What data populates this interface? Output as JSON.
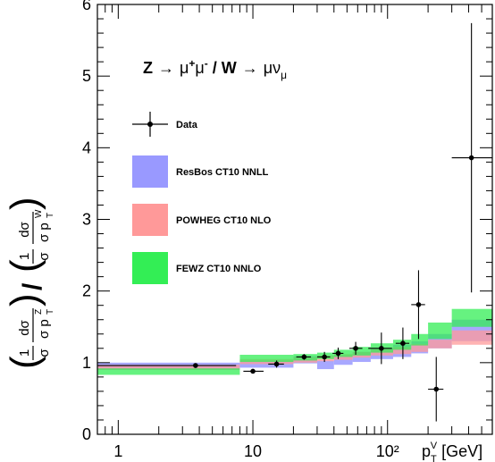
{
  "chart_data": {
    "type": "scatter",
    "title": "Z → μ⁺μ⁻ / W → μν_μ",
    "title_parts": {
      "z": "Z",
      "arrow1": "→",
      "mu": "μ",
      "plus": "+",
      "mu2": "μ",
      "minus": "-",
      "slash": " / W",
      "arrow2": "→",
      "munu": "μν",
      "sub": "μ"
    },
    "xlabel": "p_T^V [GeV]",
    "xlabel_parts": {
      "p": "p",
      "sub": "T",
      "sup": "V",
      "unit": " [GeV]"
    },
    "ylabel": "(1/σ dσ/dp_T^Z) / (1/σ dσ/dp_T^W)",
    "ylabel_parts": {
      "one": "1",
      "sigma": "σ",
      "dsigma": "dσ",
      "p": "p",
      "sub": "T",
      "supZ": "Z",
      "supW": "W"
    },
    "x_scale": "log",
    "xlim": [
      0.7,
      600
    ],
    "ylim": [
      0,
      6
    ],
    "x_tick_labels": [
      "1",
      "10",
      "10²"
    ],
    "x_tick_values": [
      1,
      10,
      100
    ],
    "y_tick_labels": [
      "0",
      "1",
      "2",
      "3",
      "4",
      "5",
      "6"
    ],
    "y_tick_values": [
      0,
      1,
      2,
      3,
      4,
      5,
      6
    ],
    "grid": false,
    "legend_position": "left",
    "series": [
      {
        "name": "Data",
        "color": "#000000",
        "points": [
          {
            "x": 3.75,
            "y": 0.96,
            "xlo": 0.7,
            "xhi": 7.5,
            "yerr": 0.02
          },
          {
            "x": 10,
            "y": 0.88,
            "xlo": 8.5,
            "xhi": 12,
            "yerr": 0.03
          },
          {
            "x": 15,
            "y": 0.98,
            "xlo": 13,
            "xhi": 17,
            "yerr": 0.05
          },
          {
            "x": 24,
            "y": 1.08,
            "xlo": 21,
            "xhi": 27,
            "yerr": 0.04
          },
          {
            "x": 34,
            "y": 1.08,
            "xlo": 30,
            "xhi": 37.5,
            "yerr": 0.07
          },
          {
            "x": 43,
            "y": 1.13,
            "xlo": 39,
            "xhi": 47,
            "yerr": 0.08
          },
          {
            "x": 58,
            "y": 1.2,
            "xlo": 52,
            "xhi": 65,
            "yerr": 0.09
          },
          {
            "x": 90,
            "y": 1.2,
            "xlo": 72,
            "xhi": 108,
            "yerr": 0.22
          },
          {
            "x": 130,
            "y": 1.27,
            "xlo": 115,
            "xhi": 145,
            "yerr": 0.22
          },
          {
            "x": 170,
            "y": 1.81,
            "xlo": 150,
            "xhi": 190,
            "yerr": 0.48
          },
          {
            "x": 230,
            "y": 0.63,
            "xlo": 200,
            "xhi": 260,
            "yerr": 0.45
          },
          {
            "x": 420,
            "y": 3.86,
            "xlo": 300,
            "xhi": 600,
            "yerr": 1.88
          }
        ]
      },
      {
        "name": "ResBos CT10 NNLL",
        "color": "#9999ff",
        "bins": [
          {
            "x0": 0.7,
            "x1": 8,
            "y0": 0.9,
            "y1": 1.0
          },
          {
            "x0": 8,
            "x1": 20,
            "y0": 0.93,
            "y1": 1.03
          },
          {
            "x0": 20,
            "x1": 30,
            "y0": 0.99,
            "y1": 1.09
          },
          {
            "x0": 30,
            "x1": 40,
            "y0": 0.91,
            "y1": 1.03
          },
          {
            "x0": 40,
            "x1": 55,
            "y0": 0.97,
            "y1": 1.1
          },
          {
            "x0": 55,
            "x1": 75,
            "y0": 1.01,
            "y1": 1.15
          },
          {
            "x0": 75,
            "x1": 110,
            "y0": 1.05,
            "y1": 1.2
          },
          {
            "x0": 110,
            "x1": 150,
            "y0": 1.08,
            "y1": 1.25
          },
          {
            "x0": 150,
            "x1": 200,
            "y0": 1.13,
            "y1": 1.3
          },
          {
            "x0": 200,
            "x1": 300,
            "y0": 1.2,
            "y1": 1.4
          },
          {
            "x0": 300,
            "x1": 600,
            "y0": 1.3,
            "y1": 1.6
          }
        ]
      },
      {
        "name": "POWHEG CT10 NLO",
        "color": "#ff9999",
        "bins": [
          {
            "x0": 0.7,
            "x1": 8,
            "y0": 0.9,
            "y1": 0.97
          },
          {
            "x0": 8,
            "x1": 20,
            "y0": 0.98,
            "y1": 1.05
          },
          {
            "x0": 20,
            "x1": 30,
            "y0": 1.0,
            "y1": 1.08
          },
          {
            "x0": 30,
            "x1": 40,
            "y0": 1.02,
            "y1": 1.1
          },
          {
            "x0": 40,
            "x1": 55,
            "y0": 1.04,
            "y1": 1.12
          },
          {
            "x0": 55,
            "x1": 75,
            "y0": 1.07,
            "y1": 1.15
          },
          {
            "x0": 75,
            "x1": 110,
            "y0": 1.1,
            "y1": 1.19
          },
          {
            "x0": 110,
            "x1": 150,
            "y0": 1.12,
            "y1": 1.22
          },
          {
            "x0": 150,
            "x1": 200,
            "y0": 1.15,
            "y1": 1.26
          },
          {
            "x0": 200,
            "x1": 300,
            "y0": 1.2,
            "y1": 1.32
          },
          {
            "x0": 300,
            "x1": 600,
            "y0": 1.25,
            "y1": 1.45
          }
        ]
      },
      {
        "name": "FEWZ CT10 NNLO",
        "color": "#33ee55",
        "bins": [
          {
            "x0": 0.7,
            "x1": 8,
            "y0": 0.83,
            "y1": 0.92
          },
          {
            "x0": 8,
            "x1": 20,
            "y0": 1.01,
            "y1": 1.11
          },
          {
            "x0": 20,
            "x1": 30,
            "y0": 1.03,
            "y1": 1.12
          },
          {
            "x0": 30,
            "x1": 40,
            "y0": 1.05,
            "y1": 1.14
          },
          {
            "x0": 40,
            "x1": 55,
            "y0": 1.08,
            "y1": 1.18
          },
          {
            "x0": 55,
            "x1": 75,
            "y0": 1.1,
            "y1": 1.22
          },
          {
            "x0": 75,
            "x1": 110,
            "y0": 1.14,
            "y1": 1.27
          },
          {
            "x0": 110,
            "x1": 150,
            "y0": 1.18,
            "y1": 1.32
          },
          {
            "x0": 150,
            "x1": 200,
            "y0": 1.24,
            "y1": 1.4
          },
          {
            "x0": 200,
            "x1": 300,
            "y0": 1.33,
            "y1": 1.56
          },
          {
            "x0": 300,
            "x1": 600,
            "y0": 1.5,
            "y1": 1.75
          }
        ]
      }
    ]
  }
}
